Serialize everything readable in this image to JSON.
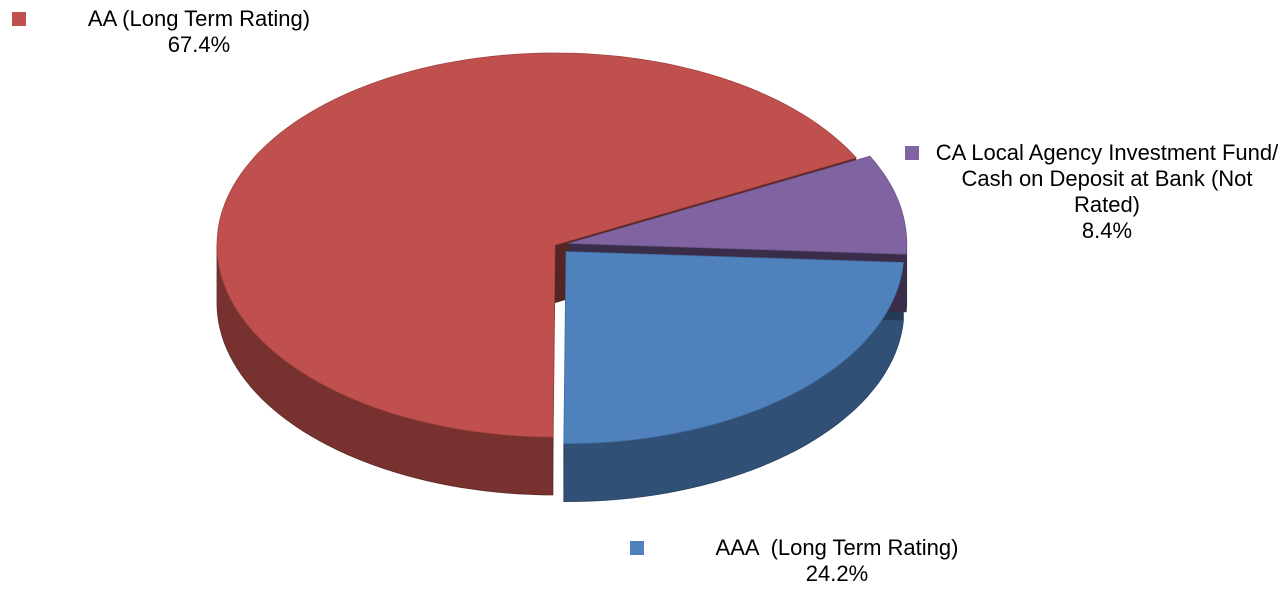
{
  "chart_data": {
    "type": "pie",
    "categories": [
      "AA (Long Term Rating)",
      "AAA  (Long Term Rating)",
      "CA Local Agency Investment Fund/ Cash on Deposit at Bank (Not Rated)"
    ],
    "values": [
      67.4,
      24.2,
      8.4
    ],
    "value_labels": [
      "67.4%",
      "24.2%",
      "8.4%"
    ],
    "colors": [
      "#c0504d",
      "#4f81bd",
      "#8064a2"
    ],
    "start_angle": -27,
    "direction": "counterclockwise",
    "legend": "beside-slices"
  }
}
